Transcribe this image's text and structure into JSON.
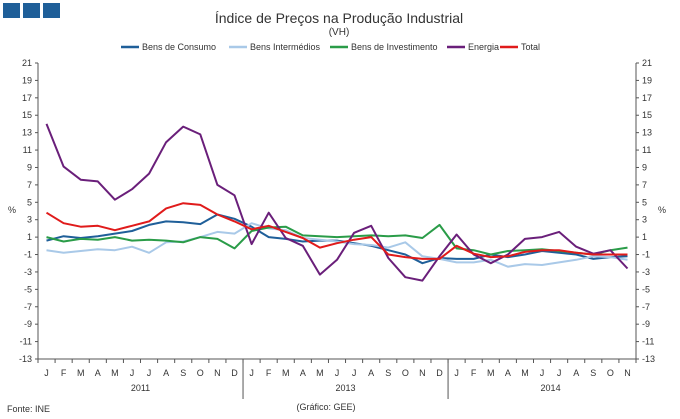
{
  "logo": {
    "color": "#1f5f99"
  },
  "chart_data": {
    "type": "line",
    "title": "Índice de Preços na Produção Industrial",
    "subtitle": "(VH)",
    "ylabel_left": "%",
    "ylabel_right": "%",
    "ylim": [
      -13,
      21
    ],
    "yticks": [
      21,
      19,
      17,
      15,
      13,
      11,
      9,
      7,
      5,
      3,
      1,
      -1,
      -3,
      -5,
      -7,
      -9,
      -11,
      -13
    ],
    "grid": false,
    "legend_position": "top",
    "month_labels": [
      "J",
      "F",
      "M",
      "A",
      "M",
      "J",
      "J",
      "A",
      "S",
      "O",
      "N",
      "D",
      "J",
      "F",
      "M",
      "A",
      "M",
      "J",
      "J",
      "A",
      "S",
      "O",
      "N",
      "D",
      "J",
      "F",
      "M",
      "A",
      "M",
      "J",
      "J",
      "A",
      "S",
      "O",
      "N"
    ],
    "year_labels": [
      {
        "label": "2011",
        "center_index": 5.5
      },
      {
        "label": "2013",
        "center_index": 17.5
      },
      {
        "label": "2014",
        "center_index": 29.5
      }
    ],
    "year_separators_after_index": [
      11,
      23
    ],
    "series": [
      {
        "name": "Bens de Consumo",
        "color": "#1f5f99",
        "values": [
          0.6,
          1.1,
          0.9,
          1.1,
          1.4,
          1.7,
          2.4,
          2.8,
          2.7,
          2.5,
          3.6,
          3.1,
          2.2,
          1.0,
          0.8,
          0.5,
          0.6,
          0.6,
          0.3,
          0.0,
          -0.5,
          -1.0,
          -2.0,
          -1.4,
          -1.5,
          -1.5,
          -1.0,
          -1.3,
          -1.0,
          -0.6,
          -0.8,
          -1.0,
          -1.5,
          -1.3,
          -1.2
        ]
      },
      {
        "name": "Bens Intermédios",
        "color": "#a9c9e8",
        "values": [
          -0.5,
          -0.8,
          -0.6,
          -0.4,
          -0.5,
          -0.1,
          -0.8,
          0.4,
          0.5,
          1.0,
          1.6,
          1.4,
          2.6,
          2.0,
          1.8,
          0.9,
          0.7,
          0.5,
          0.2,
          0.1,
          -0.2,
          0.4,
          -1.2,
          -1.5,
          -1.9,
          -1.9,
          -1.6,
          -2.4,
          -2.1,
          -2.2,
          -1.9,
          -1.6,
          -1.2,
          -1.3,
          -1.6
        ]
      },
      {
        "name": "Bens de Investimento",
        "color": "#2a9c48",
        "values": [
          1.0,
          0.5,
          0.8,
          0.7,
          1.0,
          0.6,
          0.7,
          0.6,
          0.4,
          1.0,
          0.8,
          -0.3,
          1.7,
          2.1,
          2.2,
          1.2,
          1.1,
          1.0,
          1.1,
          1.2,
          1.1,
          1.2,
          0.9,
          2.4,
          -0.3,
          -0.5,
          -1.0,
          -0.6,
          -0.5,
          -0.4,
          -0.6,
          -0.8,
          -1.0,
          -0.5,
          -0.2
        ]
      },
      {
        "name": "Energia",
        "color": "#6a1f7a",
        "values": [
          14.0,
          9.1,
          7.6,
          7.4,
          5.3,
          6.5,
          8.3,
          11.9,
          13.7,
          12.8,
          7.0,
          5.8,
          0.2,
          3.8,
          0.9,
          0.0,
          -3.3,
          -1.6,
          1.5,
          2.3,
          -1.4,
          -3.6,
          -4.0,
          -1.2,
          1.3,
          -1.0,
          -2.0,
          -1.0,
          0.8,
          1.0,
          1.6,
          -0.1,
          -0.9,
          -0.5,
          -2.6
        ]
      },
      {
        "name": "Total",
        "color": "#e01b1b",
        "values": [
          3.8,
          2.6,
          2.2,
          2.3,
          1.8,
          2.3,
          2.8,
          4.3,
          4.9,
          4.7,
          3.6,
          2.8,
          1.9,
          2.3,
          1.6,
          0.9,
          -0.2,
          0.3,
          0.7,
          1.0,
          -1.0,
          -1.3,
          -1.5,
          -1.5,
          0.0,
          -0.9,
          -1.3,
          -1.2,
          -0.7,
          -0.5,
          -0.5,
          -0.8,
          -1.0,
          -1.0,
          -1.0
        ]
      }
    ]
  },
  "footer": {
    "source": "Fonte: INE",
    "credit": "(Gráfico: GEE)"
  }
}
